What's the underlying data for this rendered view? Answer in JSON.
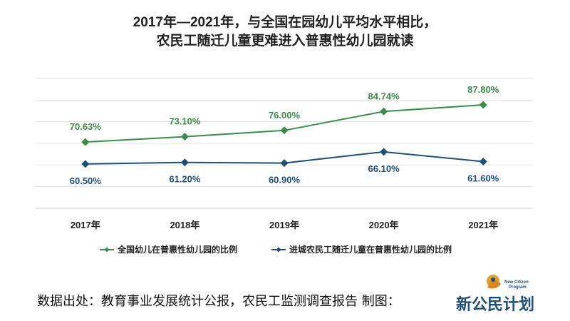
{
  "title": {
    "line1": "2017年—2021年，与全国在园幼儿平均水平相比，",
    "line2": "农民工随迁儿童更难进入普惠性幼儿园就读"
  },
  "chart_data": {
    "type": "line",
    "categories": [
      "2017年",
      "2018年",
      "2019年",
      "2020年",
      "2021年"
    ],
    "series": [
      {
        "name": "全国幼儿在普惠性幼儿园的比例",
        "color": "#3a8e48",
        "values": [
          70.63,
          73.1,
          76.0,
          84.74,
          87.8
        ],
        "labels": [
          "70.63%",
          "73.10%",
          "76.00%",
          "84.74%",
          "87.80%"
        ],
        "label_position": "above"
      },
      {
        "name": "进城农民工随迁儿童在普惠性幼儿园的比例",
        "color": "#1c4f7c",
        "values": [
          60.5,
          61.2,
          60.9,
          66.1,
          61.6
        ],
        "labels": [
          "60.50%",
          "61.20%",
          "60.90%",
          "66.10%",
          "61.60%"
        ],
        "label_position": "below"
      }
    ],
    "ylim": [
      40,
      100
    ],
    "grid": true,
    "legend_position": "bottom"
  },
  "footer": {
    "source": "数据出处：教育事业发展统计公报，农民工监测调查报告  制图：",
    "logo": {
      "main": "新公民计划",
      "small_en_1": "New Citizen",
      "small_en_2": "Program"
    }
  }
}
